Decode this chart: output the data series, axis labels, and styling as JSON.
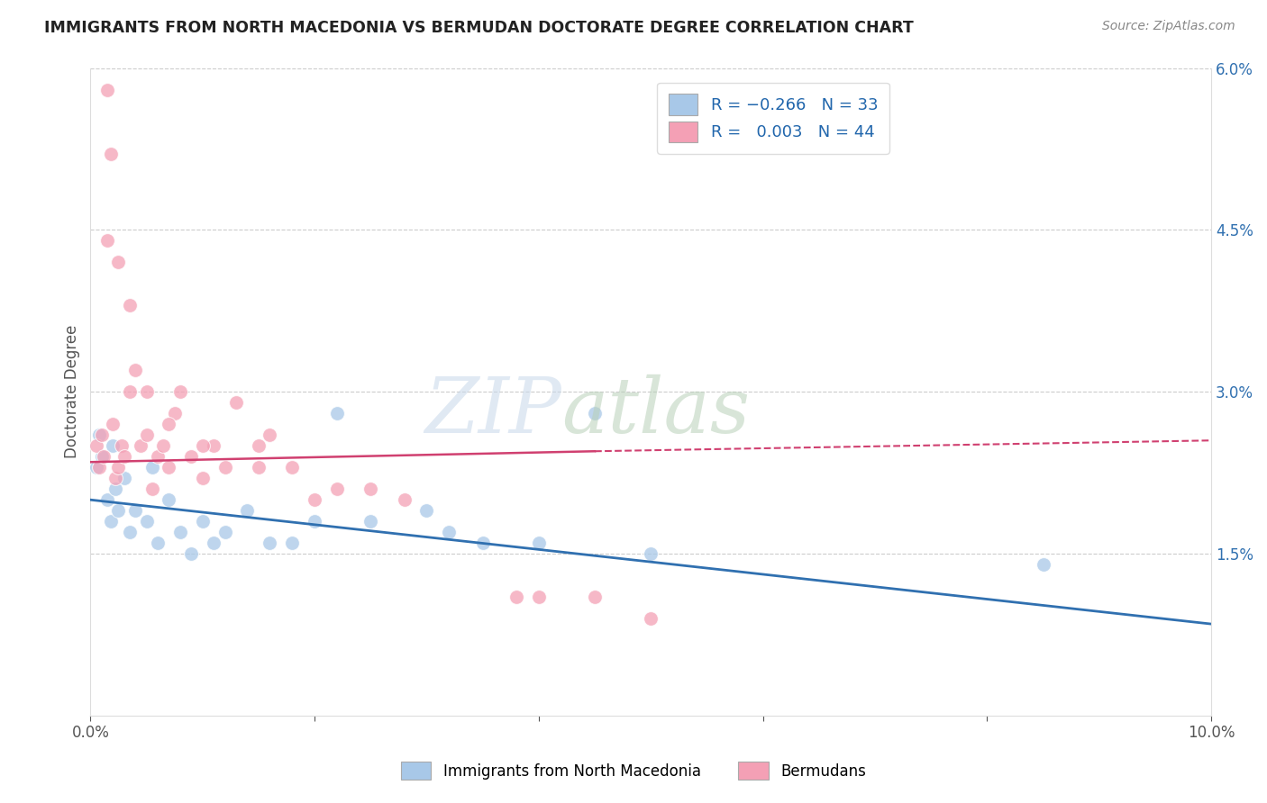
{
  "title": "IMMIGRANTS FROM NORTH MACEDONIA VS BERMUDAN DOCTORATE DEGREE CORRELATION CHART",
  "source": "Source: ZipAtlas.com",
  "ylabel_left": "Doctorate Degree",
  "x_min": 0.0,
  "x_max": 10.0,
  "y_min": 0.0,
  "y_max": 6.0,
  "right_yticks": [
    0.0,
    1.5,
    3.0,
    4.5,
    6.0
  ],
  "right_yticklabels": [
    "",
    "1.5%",
    "3.0%",
    "4.5%",
    "6.0%"
  ],
  "legend_label1": "Immigrants from North Macedonia",
  "legend_label2": "Bermudans",
  "blue_color": "#a8c8e8",
  "pink_color": "#f4a0b5",
  "blue_line_color": "#3070b0",
  "pink_line_color": "#d04070",
  "blue_R": -0.266,
  "blue_N": 33,
  "pink_R": 0.003,
  "pink_N": 44,
  "blue_line_start_y": 2.0,
  "blue_line_end_y": 0.85,
  "pink_line_start_y": 2.35,
  "pink_line_end_y": 2.55,
  "blue_dots_x": [
    0.05,
    0.08,
    0.1,
    0.15,
    0.18,
    0.2,
    0.22,
    0.25,
    0.3,
    0.35,
    0.4,
    0.5,
    0.55,
    0.6,
    0.7,
    0.8,
    0.9,
    1.0,
    1.1,
    1.2,
    1.4,
    1.6,
    1.8,
    2.0,
    2.2,
    2.5,
    3.0,
    3.2,
    3.5,
    4.0,
    4.5,
    5.0,
    8.5
  ],
  "blue_dots_y": [
    2.3,
    2.6,
    2.4,
    2.0,
    1.8,
    2.5,
    2.1,
    1.9,
    2.2,
    1.7,
    1.9,
    1.8,
    2.3,
    1.6,
    2.0,
    1.7,
    1.5,
    1.8,
    1.6,
    1.7,
    1.9,
    1.6,
    1.6,
    1.8,
    2.8,
    1.8,
    1.9,
    1.7,
    1.6,
    1.6,
    2.8,
    1.5,
    1.4
  ],
  "pink_dots_x": [
    0.05,
    0.08,
    0.1,
    0.12,
    0.15,
    0.18,
    0.2,
    0.22,
    0.25,
    0.28,
    0.3,
    0.35,
    0.4,
    0.45,
    0.5,
    0.55,
    0.6,
    0.65,
    0.7,
    0.75,
    0.8,
    0.9,
    1.0,
    1.1,
    1.2,
    1.3,
    1.5,
    1.6,
    1.8,
    2.0,
    2.2,
    2.5,
    2.8,
    0.15,
    0.25,
    0.35,
    0.5,
    0.7,
    1.0,
    1.5,
    3.8,
    4.0,
    4.5,
    5.0
  ],
  "pink_dots_y": [
    2.5,
    2.3,
    2.6,
    2.4,
    5.8,
    5.2,
    2.7,
    2.2,
    2.3,
    2.5,
    2.4,
    3.0,
    3.2,
    2.5,
    2.6,
    2.1,
    2.4,
    2.5,
    2.3,
    2.8,
    3.0,
    2.4,
    2.2,
    2.5,
    2.3,
    2.9,
    2.5,
    2.6,
    2.3,
    2.0,
    2.1,
    2.1,
    2.0,
    4.4,
    4.2,
    3.8,
    3.0,
    2.7,
    2.5,
    2.3,
    1.1,
    1.1,
    1.1,
    0.9
  ]
}
